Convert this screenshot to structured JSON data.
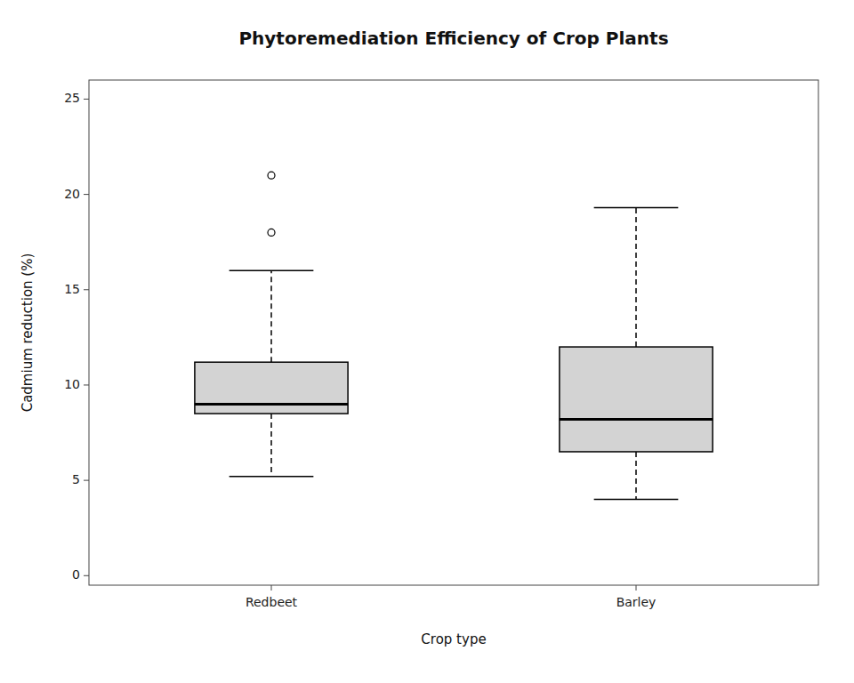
{
  "chart_data": {
    "type": "box",
    "title": "Phytoremediation Efficiency of Crop Plants",
    "x_label": "Crop type",
    "y_label": "Cadmium reduction (%)",
    "categories": [
      "Redbeet",
      "Barley"
    ],
    "boxes": [
      {
        "q1": 8.5,
        "median": 9.0,
        "q3": 11.2,
        "whisker_low": 5.2,
        "whisker_high": 16.0,
        "outliers": [
          18.0,
          21.0
        ]
      },
      {
        "q1": 6.5,
        "median": 8.2,
        "q3": 12.0,
        "whisker_low": 4.0,
        "whisker_high": 19.3,
        "outliers": []
      }
    ],
    "color": "#d3d3d3",
    "ylim": [
      -0.5,
      26
    ],
    "yticks": [
      0,
      5,
      10,
      15,
      20,
      25
    ],
    "grid": false
  }
}
